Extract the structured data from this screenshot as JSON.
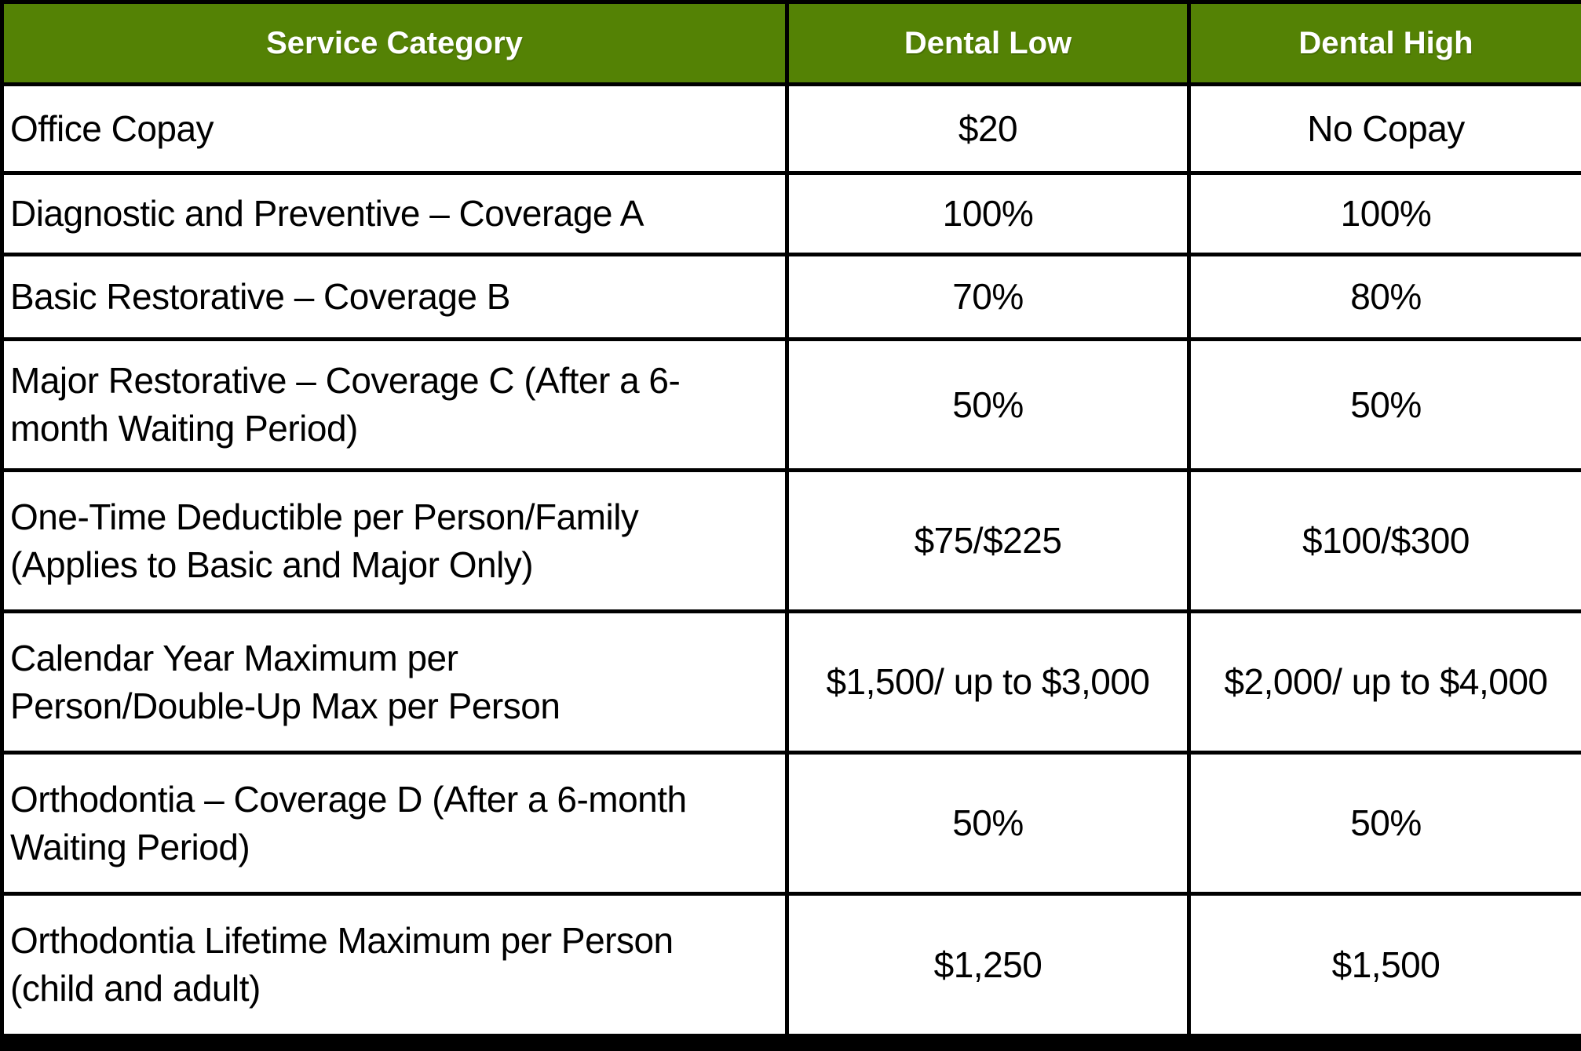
{
  "table": {
    "accent_green": "#548205",
    "border_color": "#000000",
    "columns": [
      {
        "label": "Service Category"
      },
      {
        "label": "Dental Low"
      },
      {
        "label": "Dental High"
      }
    ],
    "rows": [
      {
        "category": "Office Copay",
        "low": "$20",
        "high": "No Copay"
      },
      {
        "category": "Diagnostic and Preventive – Coverage A",
        "low": "100%",
        "high": "100%"
      },
      {
        "category": "Basic Restorative – Coverage B",
        "low": "70%",
        "high": "80%"
      },
      {
        "category": "Major Restorative – Coverage C (After a 6-\nmonth Waiting Period)",
        "low": "50%",
        "high": "50%"
      },
      {
        "category": "One-Time Deductible per Person/Family\n(Applies to Basic and Major Only)",
        "low": "$75/$225",
        "high": "$100/$300"
      },
      {
        "category": "Calendar Year Maximum per\nPerson/Double-Up Max per Person",
        "low": "$1,500/ up to $3,000",
        "high": "$2,000/ up to $4,000"
      },
      {
        "category": "Orthodontia – Coverage D (After a 6-month\nWaiting Period)",
        "low": "50%",
        "high": "50%"
      },
      {
        "category": "Orthodontia Lifetime Maximum per Person\n(child and adult)",
        "low": "$1,250",
        "high": "$1,500"
      }
    ]
  }
}
